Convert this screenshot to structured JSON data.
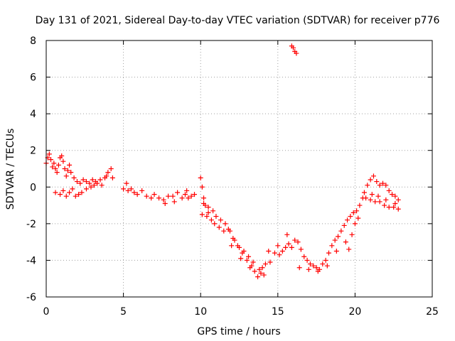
{
  "chart_data": {
    "type": "scatter",
    "title": "Day 131 of 2021, Sidereal Day-to-day VTEC variation (SDTVAR) for receiver p776",
    "xlabel": "GPS time / hours",
    "ylabel": "SDTVAR / TECUs",
    "xlim": [
      0,
      25
    ],
    "ylim": [
      -6,
      8
    ],
    "xticks": [
      0,
      5,
      10,
      15,
      20,
      25
    ],
    "yticks": [
      -6,
      -4,
      -2,
      0,
      2,
      4,
      6,
      8
    ],
    "xtick_labels": [
      "0",
      "5",
      "10",
      "15",
      "20",
      "25"
    ],
    "ytick_labels": [
      "-6",
      "-4",
      "-2",
      "0",
      "2",
      "4",
      "6",
      "8"
    ],
    "grid": true,
    "marker": "plus",
    "series": [
      {
        "name": "SDTVAR",
        "color": "#ff0000",
        "points": [
          [
            0.0,
            1.3
          ],
          [
            0.1,
            1.6
          ],
          [
            0.2,
            1.8
          ],
          [
            0.3,
            1.5
          ],
          [
            0.4,
            1.1
          ],
          [
            0.5,
            1.3
          ],
          [
            0.6,
            1.0
          ],
          [
            0.7,
            0.8
          ],
          [
            0.8,
            1.2
          ],
          [
            0.9,
            1.6
          ],
          [
            1.0,
            1.7
          ],
          [
            1.1,
            1.4
          ],
          [
            1.2,
            1.0
          ],
          [
            1.3,
            0.6
          ],
          [
            1.4,
            0.9
          ],
          [
            1.5,
            1.2
          ],
          [
            1.6,
            0.8
          ],
          [
            1.8,
            0.5
          ],
          [
            2.0,
            0.3
          ],
          [
            2.2,
            0.2
          ],
          [
            2.4,
            0.4
          ],
          [
            2.6,
            0.3
          ],
          [
            2.8,
            0.2
          ],
          [
            3.0,
            0.4
          ],
          [
            3.2,
            0.3
          ],
          [
            3.5,
            0.4
          ],
          [
            3.8,
            0.5
          ],
          [
            4.0,
            0.8
          ],
          [
            4.2,
            1.0
          ],
          [
            4.3,
            0.5
          ],
          [
            0.6,
            -0.3
          ],
          [
            0.9,
            -0.4
          ],
          [
            1.1,
            -0.2
          ],
          [
            1.3,
            -0.5
          ],
          [
            1.5,
            -0.3
          ],
          [
            1.7,
            -0.1
          ],
          [
            1.9,
            -0.5
          ],
          [
            2.1,
            -0.4
          ],
          [
            2.3,
            -0.3
          ],
          [
            2.6,
            -0.1
          ],
          [
            2.9,
            0.0
          ],
          [
            3.1,
            0.1
          ],
          [
            3.3,
            0.2
          ],
          [
            3.6,
            0.1
          ],
          [
            3.9,
            0.6
          ],
          [
            5.0,
            -0.1
          ],
          [
            5.2,
            0.2
          ],
          [
            5.3,
            -0.2
          ],
          [
            5.5,
            -0.1
          ],
          [
            5.7,
            -0.3
          ],
          [
            5.9,
            -0.4
          ],
          [
            6.2,
            -0.2
          ],
          [
            6.5,
            -0.5
          ],
          [
            6.8,
            -0.6
          ],
          [
            7.0,
            -0.4
          ],
          [
            7.3,
            -0.6
          ],
          [
            7.6,
            -0.7
          ],
          [
            7.9,
            -0.5
          ],
          [
            8.2,
            -0.5
          ],
          [
            8.5,
            -0.3
          ],
          [
            8.8,
            -0.6
          ],
          [
            9.0,
            -0.4
          ],
          [
            9.2,
            -0.6
          ],
          [
            9.4,
            -0.5
          ],
          [
            9.6,
            -0.4
          ],
          [
            7.7,
            -0.9
          ],
          [
            8.3,
            -0.8
          ],
          [
            9.1,
            -0.2
          ],
          [
            10.0,
            0.5
          ],
          [
            10.1,
            0.0
          ],
          [
            10.2,
            -0.6
          ],
          [
            10.3,
            -1.0
          ],
          [
            10.5,
            -1.4
          ],
          [
            10.7,
            -1.8
          ],
          [
            10.9,
            -2.0
          ],
          [
            11.2,
            -2.2
          ],
          [
            11.5,
            -2.4
          ],
          [
            11.8,
            -2.3
          ],
          [
            12.1,
            -2.8
          ],
          [
            12.4,
            -3.2
          ],
          [
            12.7,
            -3.6
          ],
          [
            13.0,
            -4.0
          ],
          [
            13.3,
            -4.3
          ],
          [
            13.5,
            -4.6
          ],
          [
            13.7,
            -4.9
          ],
          [
            13.9,
            -4.7
          ],
          [
            14.0,
            -4.4
          ],
          [
            14.2,
            -4.2
          ],
          [
            14.4,
            -3.5
          ],
          [
            10.2,
            -0.9
          ],
          [
            10.5,
            -1.1
          ],
          [
            10.8,
            -1.3
          ],
          [
            11.0,
            -1.6
          ],
          [
            11.3,
            -1.8
          ],
          [
            11.6,
            -2.0
          ],
          [
            11.9,
            -2.4
          ],
          [
            12.2,
            -2.9
          ],
          [
            12.5,
            -3.3
          ],
          [
            12.8,
            -3.5
          ],
          [
            13.1,
            -3.8
          ],
          [
            13.4,
            -4.1
          ],
          [
            13.8,
            -4.5
          ],
          [
            14.1,
            -4.8
          ],
          [
            10.1,
            -1.5
          ],
          [
            10.4,
            -1.6
          ],
          [
            12.0,
            -3.2
          ],
          [
            12.6,
            -3.9
          ],
          [
            13.2,
            -4.4
          ],
          [
            14.5,
            -4.1
          ],
          [
            14.8,
            -3.6
          ],
          [
            15.1,
            -3.7
          ],
          [
            15.3,
            -3.5
          ],
          [
            15.5,
            -3.3
          ],
          [
            15.7,
            -3.1
          ],
          [
            15.9,
            -3.3
          ],
          [
            16.1,
            -2.9
          ],
          [
            16.3,
            -3.0
          ],
          [
            15.6,
            -2.6
          ],
          [
            15.0,
            -3.2
          ],
          [
            16.5,
            -3.4
          ],
          [
            16.7,
            -3.8
          ],
          [
            16.9,
            -4.0
          ],
          [
            17.1,
            -4.2
          ],
          [
            17.3,
            -4.3
          ],
          [
            17.5,
            -4.4
          ],
          [
            17.7,
            -4.5
          ],
          [
            17.9,
            -4.2
          ],
          [
            18.1,
            -4.0
          ],
          [
            18.3,
            -3.6
          ],
          [
            18.5,
            -3.2
          ],
          [
            18.7,
            -2.9
          ],
          [
            18.9,
            -2.7
          ],
          [
            19.1,
            -2.4
          ],
          [
            19.3,
            -2.1
          ],
          [
            19.5,
            -1.8
          ],
          [
            19.7,
            -1.6
          ],
          [
            19.9,
            -1.4
          ],
          [
            20.1,
            -1.3
          ],
          [
            20.3,
            -1.0
          ],
          [
            20.5,
            -0.6
          ],
          [
            16.4,
            -4.4
          ],
          [
            17.0,
            -4.5
          ],
          [
            17.6,
            -4.6
          ],
          [
            18.2,
            -4.3
          ],
          [
            18.8,
            -3.5
          ],
          [
            19.4,
            -3.0
          ],
          [
            19.6,
            -3.4
          ],
          [
            19.8,
            -2.6
          ],
          [
            20.0,
            -2.0
          ],
          [
            20.2,
            -1.7
          ],
          [
            20.6,
            -0.3
          ],
          [
            20.8,
            0.1
          ],
          [
            21.0,
            0.4
          ],
          [
            21.2,
            0.6
          ],
          [
            21.4,
            0.3
          ],
          [
            21.6,
            0.1
          ],
          [
            21.8,
            0.2
          ],
          [
            22.0,
            0.1
          ],
          [
            22.2,
            -0.2
          ],
          [
            22.4,
            -0.4
          ],
          [
            22.6,
            -0.5
          ],
          [
            22.8,
            -0.7
          ],
          [
            20.7,
            -0.6
          ],
          [
            21.0,
            -0.7
          ],
          [
            21.3,
            -0.8
          ],
          [
            21.6,
            -0.8
          ],
          [
            21.9,
            -1.0
          ],
          [
            22.2,
            -1.1
          ],
          [
            22.5,
            -1.1
          ],
          [
            22.8,
            -1.2
          ],
          [
            21.1,
            -0.4
          ],
          [
            21.5,
            -0.5
          ],
          [
            22.0,
            -0.7
          ],
          [
            22.6,
            -0.9
          ],
          [
            15.9,
            7.7
          ],
          [
            16.0,
            7.6
          ],
          [
            16.1,
            7.4
          ],
          [
            16.2,
            7.3
          ]
        ]
      }
    ]
  }
}
